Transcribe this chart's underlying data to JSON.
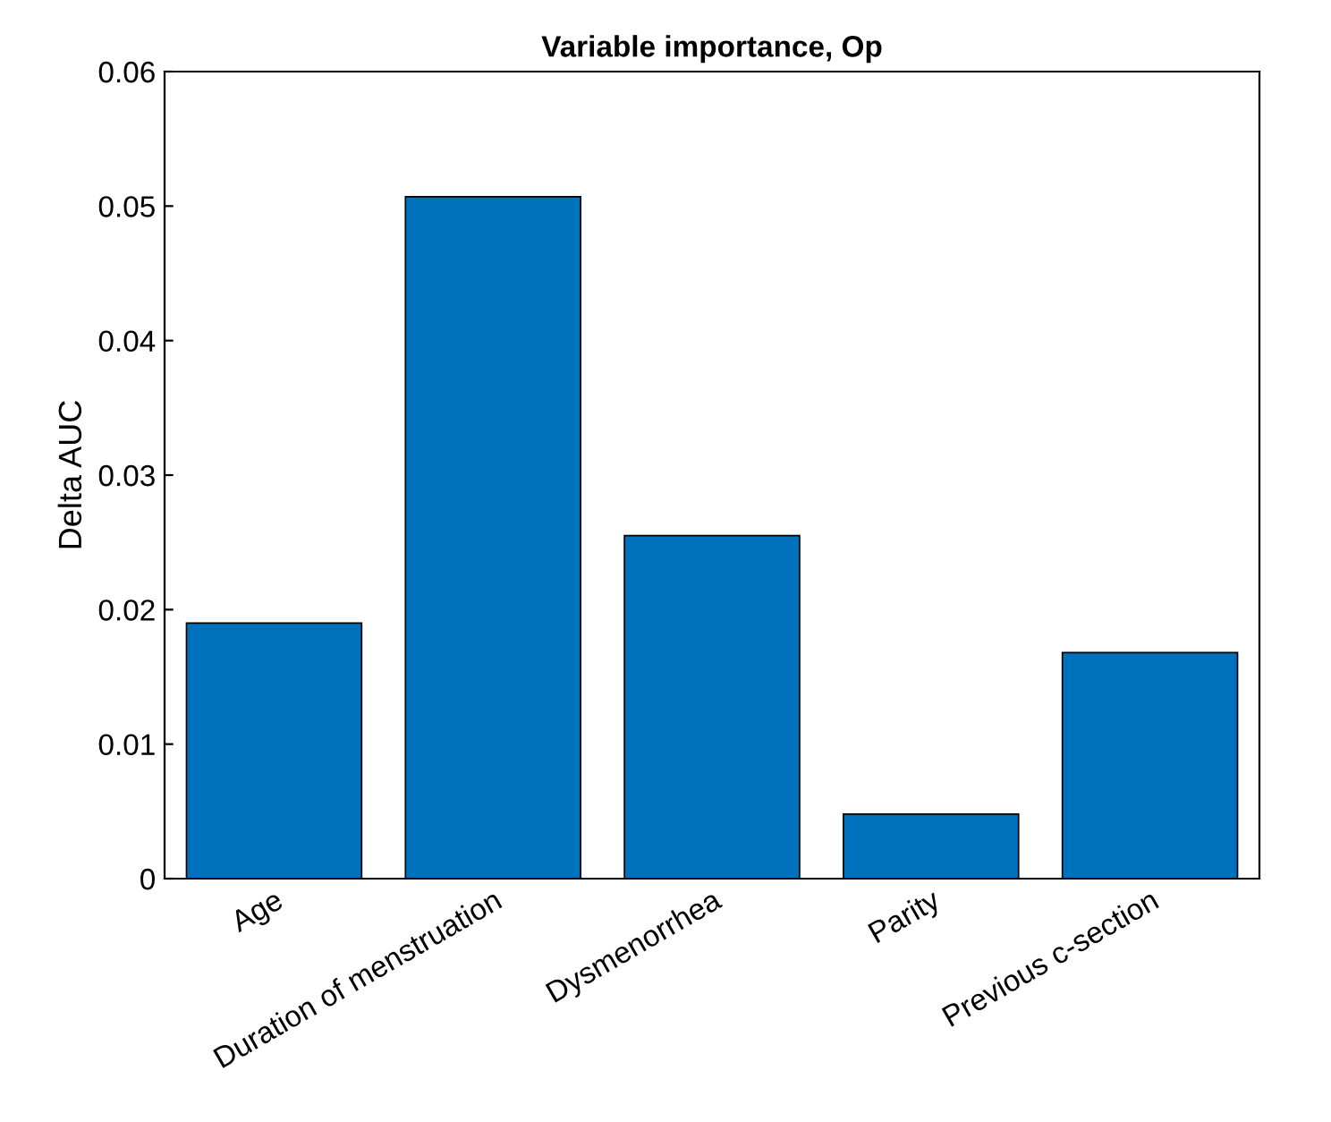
{
  "chart_data": {
    "type": "bar",
    "title": "Variable importance, Op",
    "ylabel": "Delta AUC",
    "categories": [
      "Age",
      "Duration of menstruation",
      "Dysmenorrhea",
      "Parity",
      "Previous c-section"
    ],
    "values": [
      0.019,
      0.0507,
      0.0255,
      0.0048,
      0.0168
    ],
    "color": "#0072bd",
    "ylim": [
      0,
      0.06
    ],
    "yticks": [
      {
        "value": 0,
        "label": "0"
      },
      0.01,
      0.02,
      0.03,
      0.04,
      0.05,
      0.06
    ],
    "grid": false,
    "legend": false
  }
}
